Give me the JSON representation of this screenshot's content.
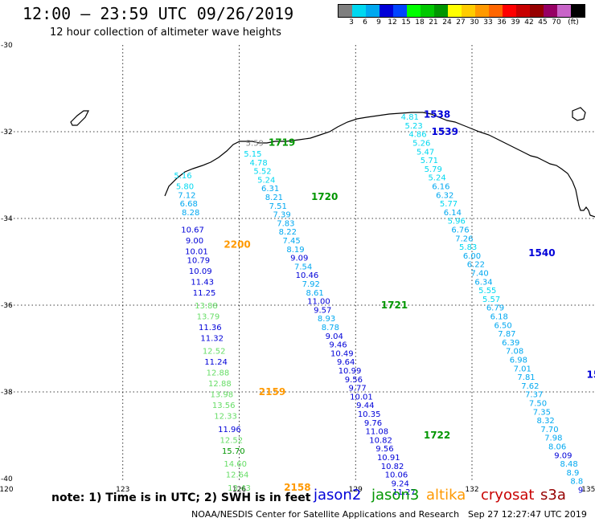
{
  "header": {
    "title": "12:00 – 23:59 UTC 09/26/2019",
    "subtitle": "12 hour collection of altimeter wave heights"
  },
  "legend": {
    "colors": [
      "#7f7f7f",
      "#00d8f0",
      "#00a8f0",
      "#0000d8",
      "#0044ff",
      "#00ff00",
      "#00c800",
      "#009600",
      "#ffff00",
      "#ffcc00",
      "#ff9900",
      "#ff6600",
      "#ff0000",
      "#c80000",
      "#960000",
      "#960064",
      "#c864c8",
      "#000000"
    ],
    "labels": [
      "3",
      "6",
      "9",
      "12",
      "15",
      "18",
      "21",
      "24",
      "27",
      "30",
      "33",
      "36",
      "39",
      "42",
      "45",
      "70",
      "(ft)"
    ]
  },
  "axes": {
    "lon_ticks": [
      "120",
      "123",
      "126",
      "129",
      "132",
      "135"
    ],
    "lat_ticks": [
      "-30",
      "-32",
      "-34",
      "-36",
      "-38",
      "-40"
    ]
  },
  "footer": {
    "note": "note:  1) Time is in UTC;  2) SWH is in feet",
    "credit": "NOAA/NESDIS Center for Satellite Applications and Research",
    "timestamp": "Sep 27 12:27:47 UTC 2019",
    "satellites": [
      {
        "name": "jason2",
        "color": "#0000d8"
      },
      {
        "name": "jason3",
        "color": "#009600"
      },
      {
        "name": "altika",
        "color": "#ff9900"
      },
      {
        "name": "cryosat",
        "color": "#c80000"
      },
      {
        "name": "s3a",
        "color": "#960000"
      }
    ]
  },
  "tracks": [
    {
      "times": [
        {
          "label": "2200",
          "color": "#ff9900",
          "lon": 125.95,
          "lat": -34.6
        }
      ],
      "points": [
        {
          "lon": 124.55,
          "lat": -33.0,
          "v": "5.16",
          "c": "#00d8f0"
        },
        {
          "lon": 124.6,
          "lat": -33.25,
          "v": "5.80",
          "c": "#00d8f0"
        },
        {
          "lon": 124.65,
          "lat": -33.45,
          "v": "7.12",
          "c": "#00a8f0"
        },
        {
          "lon": 124.7,
          "lat": -33.65,
          "v": "6.68",
          "c": "#00a8f0"
        },
        {
          "lon": 124.75,
          "lat": -33.85,
          "v": "8.28",
          "c": "#00a8f0"
        },
        {
          "lon": 124.8,
          "lat": -34.25,
          "v": "10.67",
          "c": "#0000d8"
        },
        {
          "lon": 124.85,
          "lat": -34.5,
          "v": "9.00",
          "c": "#0000d8"
        },
        {
          "lon": 124.9,
          "lat": -34.75,
          "v": "10.01",
          "c": "#0000d8"
        },
        {
          "lon": 124.95,
          "lat": -34.95,
          "v": "10.79",
          "c": "#0000d8"
        },
        {
          "lon": 125.0,
          "lat": -35.2,
          "v": "10.09",
          "c": "#0000d8"
        },
        {
          "lon": 125.05,
          "lat": -35.45,
          "v": "11.43",
          "c": "#0000d8"
        },
        {
          "lon": 125.1,
          "lat": -35.7,
          "v": "11.25",
          "c": "#0000d8"
        },
        {
          "lon": 125.15,
          "lat": -36.0,
          "v": "13.88",
          "c": "#66dd66"
        },
        {
          "lon": 125.2,
          "lat": -36.25,
          "v": "13.79",
          "c": "#66dd66"
        },
        {
          "lon": 125.25,
          "lat": -36.5,
          "v": "11.36",
          "c": "#0000d8"
        },
        {
          "lon": 125.3,
          "lat": -36.75,
          "v": "11.32",
          "c": "#0000d8"
        },
        {
          "lon": 125.35,
          "lat": -37.05,
          "v": "12.52",
          "c": "#66dd66"
        },
        {
          "lon": 125.4,
          "lat": -37.3,
          "v": "11.24",
          "c": "#0000d8"
        },
        {
          "lon": 125.45,
          "lat": -37.55,
          "v": "12.88",
          "c": "#66dd66"
        },
        {
          "lon": 125.5,
          "lat": -37.8,
          "v": "12.88",
          "c": "#66dd66"
        }
      ]
    },
    {
      "times": [
        {
          "label": "2159",
          "color": "#ff9900",
          "lon": 126.85,
          "lat": -38.0
        }
      ],
      "points": [
        {
          "lon": 125.55,
          "lat": -38.05,
          "v": "13.98",
          "c": "#66dd66"
        },
        {
          "lon": 125.6,
          "lat": -38.3,
          "v": "13.56",
          "c": "#66dd66"
        },
        {
          "lon": 125.65,
          "lat": -38.55,
          "v": "12.33",
          "c": "#66dd66"
        },
        {
          "lon": 125.75,
          "lat": -38.85,
          "v": "11.96",
          "c": "#0000d8"
        },
        {
          "lon": 125.8,
          "lat": -39.1,
          "v": "12.52",
          "c": "#66dd66"
        },
        {
          "lon": 125.85,
          "lat": -39.35,
          "v": "15.70",
          "c": "#009600"
        },
        {
          "lon": 125.9,
          "lat": -39.65,
          "v": "14.60",
          "c": "#66dd66"
        },
        {
          "lon": 125.95,
          "lat": -39.9,
          "v": "12.64",
          "c": "#66dd66"
        },
        {
          "lon": 126.0,
          "lat": -40.2,
          "v": "13.43",
          "c": "#66dd66"
        }
      ]
    },
    {
      "times": [
        {
          "label": "2158",
          "color": "#ff9900",
          "lon": 127.5,
          "lat": -40.2
        }
      ],
      "points": []
    },
    {
      "times": [
        {
          "label": "1719",
          "color": "#009600",
          "lon": 127.1,
          "lat": -32.25
        },
        {
          "label": "1720",
          "color": "#009600",
          "lon": 128.2,
          "lat": -33.5
        },
        {
          "lon": 130.0,
          "lat": -36.0,
          "label": "1721",
          "color": "#009600"
        },
        {
          "label": "1722",
          "color": "#009600",
          "lon": 131.1,
          "lat": -39.0
        }
      ],
      "points": [
        {
          "lon": 126.4,
          "lat": -32.25,
          "v": "5.59",
          "c": "#7f7f7f"
        },
        {
          "lon": 126.35,
          "lat": -32.5,
          "v": "5.15",
          "c": "#00d8f0"
        },
        {
          "lon": 126.5,
          "lat": -32.7,
          "v": "4.78",
          "c": "#00d8f0"
        },
        {
          "lon": 126.6,
          "lat": -32.9,
          "v": "5.52",
          "c": "#00d8f0"
        },
        {
          "lon": 126.7,
          "lat": -33.1,
          "v": "5.24",
          "c": "#00d8f0"
        },
        {
          "lon": 126.8,
          "lat": -33.3,
          "v": "6.31",
          "c": "#00a8f0"
        },
        {
          "lon": 126.9,
          "lat": -33.5,
          "v": "8.21",
          "c": "#00a8f0"
        },
        {
          "lon": 127.0,
          "lat": -33.7,
          "v": "7.51",
          "c": "#00a8f0"
        },
        {
          "lon": 127.1,
          "lat": -33.9,
          "v": "7.39",
          "c": "#00a8f0"
        },
        {
          "lon": 127.2,
          "lat": -34.1,
          "v": "7.83",
          "c": "#00a8f0"
        },
        {
          "lon": 127.25,
          "lat": -34.3,
          "v": "8.22",
          "c": "#00a8f0"
        },
        {
          "lon": 127.35,
          "lat": -34.5,
          "v": "7.45",
          "c": "#00a8f0"
        },
        {
          "lon": 127.45,
          "lat": -34.7,
          "v": "8.19",
          "c": "#00a8f0"
        },
        {
          "lon": 127.55,
          "lat": -34.9,
          "v": "9.09",
          "c": "#0000d8"
        },
        {
          "lon": 127.65,
          "lat": -35.1,
          "v": "7.54",
          "c": "#00a8f0"
        },
        {
          "lon": 127.75,
          "lat": -35.3,
          "v": "10.46",
          "c": "#0000d8"
        },
        {
          "lon": 127.85,
          "lat": -35.5,
          "v": "7.92",
          "c": "#00a8f0"
        },
        {
          "lon": 127.95,
          "lat": -35.7,
          "v": "8.61",
          "c": "#00a8f0"
        },
        {
          "lon": 128.05,
          "lat": -35.9,
          "v": "11.00",
          "c": "#0000d8"
        },
        {
          "lon": 128.15,
          "lat": -36.1,
          "v": "9.57",
          "c": "#0000d8"
        },
        {
          "lon": 128.25,
          "lat": -36.3,
          "v": "8.93",
          "c": "#00a8f0"
        },
        {
          "lon": 128.35,
          "lat": -36.5,
          "v": "8.78",
          "c": "#00a8f0"
        },
        {
          "lon": 128.45,
          "lat": -36.7,
          "v": "9.04",
          "c": "#0000d8"
        },
        {
          "lon": 128.55,
          "lat": -36.9,
          "v": "9.46",
          "c": "#0000d8"
        },
        {
          "lon": 128.65,
          "lat": -37.1,
          "v": "10.49",
          "c": "#0000d8"
        },
        {
          "lon": 128.75,
          "lat": -37.3,
          "v": "9.64",
          "c": "#0000d8"
        },
        {
          "lon": 128.85,
          "lat": -37.5,
          "v": "10.99",
          "c": "#0000d8"
        },
        {
          "lon": 128.95,
          "lat": -37.7,
          "v": "9.56",
          "c": "#0000d8"
        },
        {
          "lon": 129.05,
          "lat": -37.9,
          "v": "9.77",
          "c": "#0000d8"
        },
        {
          "lon": 129.15,
          "lat": -38.1,
          "v": "10.01",
          "c": "#0000d8"
        },
        {
          "lon": 129.25,
          "lat": -38.3,
          "v": "9.44",
          "c": "#0000d8"
        },
        {
          "lon": 129.35,
          "lat": -38.5,
          "v": "10.35",
          "c": "#0000d8"
        },
        {
          "lon": 129.45,
          "lat": -38.7,
          "v": "9.76",
          "c": "#0000d8"
        },
        {
          "lon": 129.55,
          "lat": -38.9,
          "v": "11.08",
          "c": "#0000d8"
        },
        {
          "lon": 129.65,
          "lat": -39.1,
          "v": "10.82",
          "c": "#0000d8"
        },
        {
          "lon": 129.75,
          "lat": -39.3,
          "v": "9.56",
          "c": "#0000d8"
        },
        {
          "lon": 129.85,
          "lat": -39.5,
          "v": "10.91",
          "c": "#0000d8"
        },
        {
          "lon": 129.95,
          "lat": -39.7,
          "v": "10.82",
          "c": "#0000d8"
        },
        {
          "lon": 130.05,
          "lat": -39.9,
          "v": "10.06",
          "c": "#0000d8"
        },
        {
          "lon": 130.15,
          "lat": -40.1,
          "v": "9.24",
          "c": "#0000d8"
        },
        {
          "lon": 130.25,
          "lat": -40.3,
          "v": "11.27",
          "c": "#0000d8"
        }
      ]
    },
    {
      "times": [
        {
          "label": "1538",
          "color": "#0000d8",
          "lon": 131.1,
          "lat": -31.6
        },
        {
          "label": "1539",
          "color": "#0000d8",
          "lon": 131.3,
          "lat": -32.0
        },
        {
          "label": "1540",
          "color": "#0000d8",
          "lon": 133.8,
          "lat": -34.8
        },
        {
          "label": "1541",
          "color": "#0000d8",
          "lon": 135.3,
          "lat": -37.6
        }
      ],
      "points": [
        {
          "lon": 130.4,
          "lat": -31.65,
          "v": "4.81",
          "c": "#00d8f0"
        },
        {
          "lon": 130.5,
          "lat": -31.85,
          "v": "5.23",
          "c": "#00d8f0"
        },
        {
          "lon": 130.6,
          "lat": -32.05,
          "v": "4.86",
          "c": "#00d8f0"
        },
        {
          "lon": 130.7,
          "lat": -32.25,
          "v": "5.26",
          "c": "#00d8f0"
        },
        {
          "lon": 130.8,
          "lat": -32.45,
          "v": "5.47",
          "c": "#00d8f0"
        },
        {
          "lon": 130.9,
          "lat": -32.65,
          "v": "5.71",
          "c": "#00d8f0"
        },
        {
          "lon": 131.0,
          "lat": -32.85,
          "v": "5.79",
          "c": "#00d8f0"
        },
        {
          "lon": 131.1,
          "lat": -33.05,
          "v": "5.24",
          "c": "#00d8f0"
        },
        {
          "lon": 131.2,
          "lat": -33.25,
          "v": "6.16",
          "c": "#00a8f0"
        },
        {
          "lon": 131.3,
          "lat": -33.45,
          "v": "6.32",
          "c": "#00a8f0"
        },
        {
          "lon": 131.4,
          "lat": -33.65,
          "v": "5.77",
          "c": "#00d8f0"
        },
        {
          "lon": 131.5,
          "lat": -33.85,
          "v": "6.14",
          "c": "#00a8f0"
        },
        {
          "lon": 131.6,
          "lat": -34.05,
          "v": "5.96",
          "c": "#00d8f0"
        },
        {
          "lon": 131.7,
          "lat": -34.25,
          "v": "6.76",
          "c": "#00a8f0"
        },
        {
          "lon": 131.8,
          "lat": -34.45,
          "v": "7.26",
          "c": "#00a8f0"
        },
        {
          "lon": 131.9,
          "lat": -34.65,
          "v": "5.83",
          "c": "#00d8f0"
        },
        {
          "lon": 132.0,
          "lat": -34.85,
          "v": "6.00",
          "c": "#00a8f0"
        },
        {
          "lon": 132.1,
          "lat": -35.05,
          "v": "6.22",
          "c": "#00a8f0"
        },
        {
          "lon": 132.2,
          "lat": -35.25,
          "v": "7.40",
          "c": "#00a8f0"
        },
        {
          "lon": 132.3,
          "lat": -35.45,
          "v": "6.34",
          "c": "#00a8f0"
        },
        {
          "lon": 132.4,
          "lat": -35.65,
          "v": "5.55",
          "c": "#00d8f0"
        },
        {
          "lon": 132.5,
          "lat": -35.85,
          "v": "5.57",
          "c": "#00d8f0"
        },
        {
          "lon": 132.6,
          "lat": -36.05,
          "v": "6.79",
          "c": "#00a8f0"
        },
        {
          "lon": 132.7,
          "lat": -36.25,
          "v": "6.18",
          "c": "#00a8f0"
        },
        {
          "lon": 132.8,
          "lat": -36.45,
          "v": "6.50",
          "c": "#00a8f0"
        },
        {
          "lon": 132.9,
          "lat": -36.65,
          "v": "7.87",
          "c": "#00a8f0"
        },
        {
          "lon": 133.0,
          "lat": -36.85,
          "v": "6.39",
          "c": "#00a8f0"
        },
        {
          "lon": 133.1,
          "lat": -37.05,
          "v": "7.08",
          "c": "#00a8f0"
        },
        {
          "lon": 133.2,
          "lat": -37.25,
          "v": "6.98",
          "c": "#00a8f0"
        },
        {
          "lon": 133.3,
          "lat": -37.45,
          "v": "7.01",
          "c": "#00a8f0"
        },
        {
          "lon": 133.4,
          "lat": -37.65,
          "v": "7.81",
          "c": "#00a8f0"
        },
        {
          "lon": 133.5,
          "lat": -37.85,
          "v": "7.62",
          "c": "#00a8f0"
        },
        {
          "lon": 133.6,
          "lat": -38.05,
          "v": "7.37",
          "c": "#00a8f0"
        },
        {
          "lon": 133.7,
          "lat": -38.25,
          "v": "7.50",
          "c": "#00a8f0"
        },
        {
          "lon": 133.8,
          "lat": -38.45,
          "v": "7.35",
          "c": "#00a8f0"
        },
        {
          "lon": 133.9,
          "lat": -38.65,
          "v": "8.32",
          "c": "#00a8f0"
        },
        {
          "lon": 134.0,
          "lat": -38.85,
          "v": "7.70",
          "c": "#00a8f0"
        },
        {
          "lon": 134.1,
          "lat": -39.05,
          "v": "7.98",
          "c": "#00a8f0"
        },
        {
          "lon": 134.2,
          "lat": -39.25,
          "v": "8.06",
          "c": "#00a8f0"
        },
        {
          "lon": 134.35,
          "lat": -39.45,
          "v": "9.09",
          "c": "#0000d8"
        },
        {
          "lon": 134.5,
          "lat": -39.65,
          "v": "8.48",
          "c": "#00a8f0"
        },
        {
          "lon": 134.6,
          "lat": -39.85,
          "v": "8.9",
          "c": "#00a8f0"
        },
        {
          "lon": 134.7,
          "lat": -40.05,
          "v": "8.8",
          "c": "#00a8f0"
        },
        {
          "lon": 134.8,
          "lat": -40.25,
          "v": "9",
          "c": "#0000d8"
        }
      ]
    }
  ]
}
